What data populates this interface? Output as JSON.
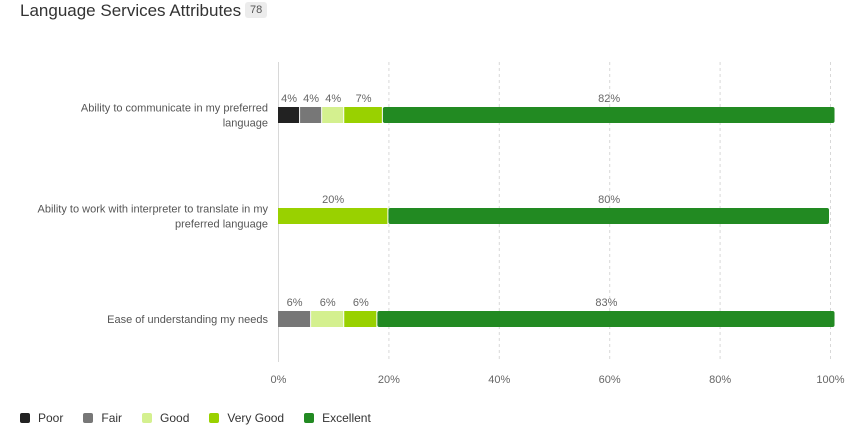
{
  "header": {
    "title": "Language Services Attributes",
    "count": "78"
  },
  "chart_data": {
    "type": "bar",
    "orientation": "horizontal",
    "stacked": true,
    "categories": [
      [
        "Ability to communicate in my preferred",
        "language"
      ],
      [
        "Ability to work with interpreter to translate in my",
        "preferred language"
      ],
      [
        "Ease of understanding my needs"
      ]
    ],
    "series": [
      {
        "name": "Poor",
        "color": "#222222",
        "values": [
          4,
          0,
          0
        ]
      },
      {
        "name": "Fair",
        "color": "#777777",
        "values": [
          4,
          0,
          6
        ]
      },
      {
        "name": "Good",
        "color": "#d4f08f",
        "values": [
          4,
          0,
          6
        ]
      },
      {
        "name": "Very Good",
        "color": "#99d100",
        "values": [
          7,
          20,
          6
        ]
      },
      {
        "name": "Excellent",
        "color": "#228a22",
        "values": [
          82,
          80,
          83
        ]
      }
    ],
    "data_labels": [
      [
        "4%",
        "4%",
        "4%",
        "7%",
        "82%"
      ],
      [
        "",
        "",
        "",
        "20%",
        "80%"
      ],
      [
        "",
        "6%",
        "6%",
        "6%",
        "83%"
      ]
    ],
    "xlim": [
      0,
      100
    ],
    "xticks": [
      "0%",
      "20%",
      "40%",
      "60%",
      "80%",
      "100%"
    ],
    "grid": true,
    "legend_position": "bottom-left"
  }
}
